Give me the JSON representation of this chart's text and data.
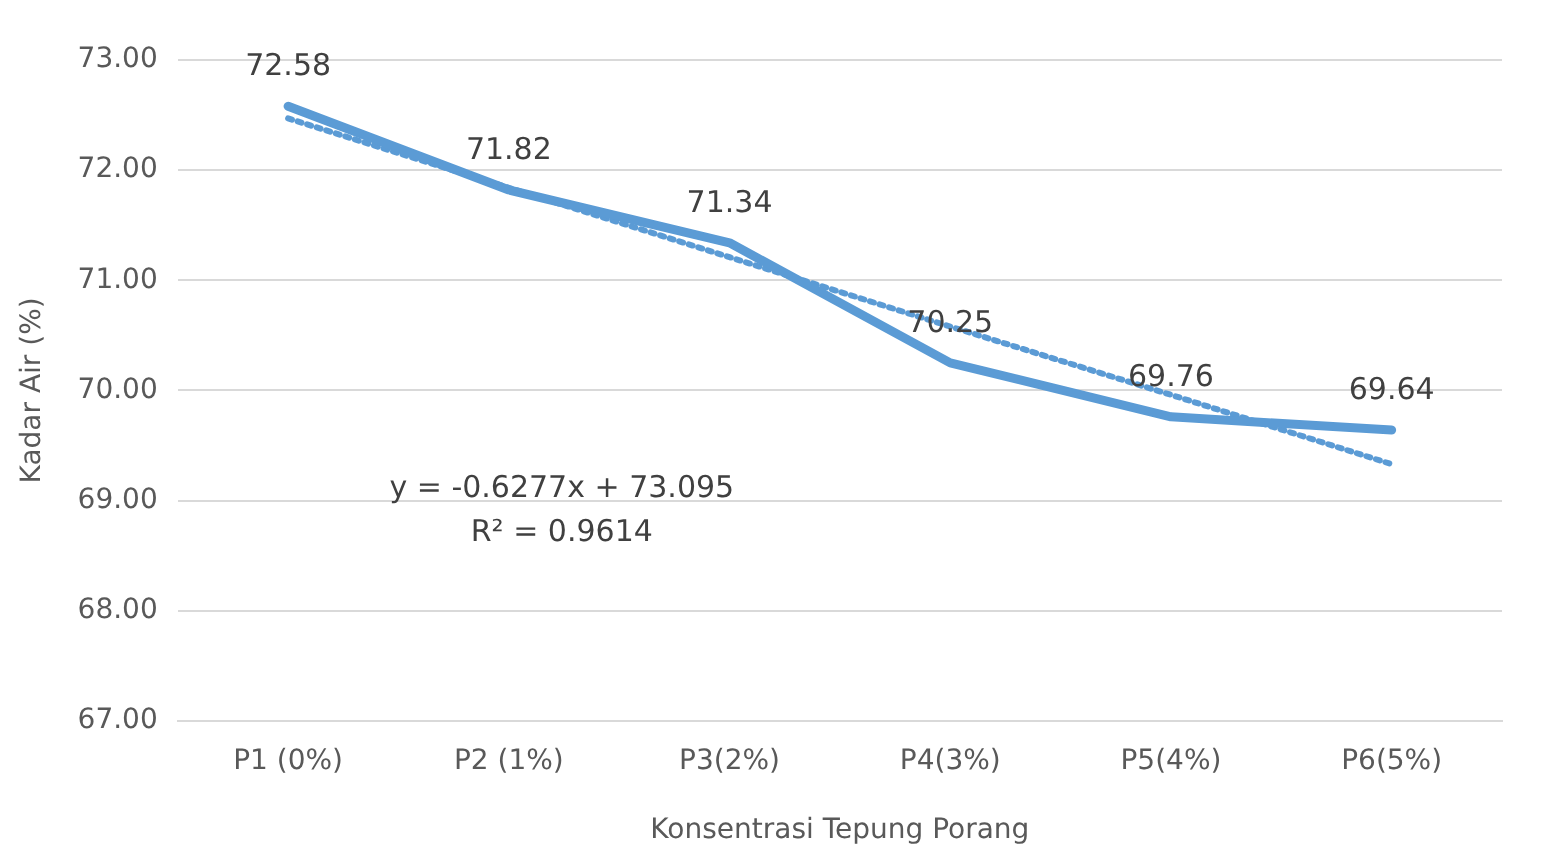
{
  "chart_data": {
    "type": "line",
    "xlabel": "Konsentrasi Tepung Porang",
    "ylabel": "Kadar Air (%)",
    "categories": [
      "P1 (0%)",
      "P2 (1%)",
      "P3(2%)",
      "P4(3%)",
      "P5(4%)",
      "P6(5%)"
    ],
    "series": [
      {
        "color": "#5b9bd5",
        "line_style": "solid",
        "values": [
          72.58,
          71.82,
          71.34,
          70.25,
          69.76,
          69.64
        ],
        "value_labels": [
          "72.58",
          "71.82",
          "71.34",
          "70.25",
          "69.76",
          "69.64"
        ]
      },
      {
        "color": "#5b9bd5",
        "line_style": "dotted",
        "values": [
          72.47,
          71.84,
          71.21,
          70.58,
          69.96,
          69.33
        ]
      }
    ],
    "ylim": [
      67,
      73
    ],
    "yticks": [
      {
        "value": 67,
        "label": "67.00"
      },
      {
        "value": 68,
        "label": "68.00"
      },
      {
        "value": 69,
        "label": "69.00"
      },
      {
        "value": 70,
        "label": "70.00"
      },
      {
        "value": 71,
        "label": "71.00"
      },
      {
        "value": 72,
        "label": "72.00"
      },
      {
        "value": 73,
        "label": "73.00"
      }
    ],
    "annotations": [
      "y = -0.6277x + 73.095",
      "R² = 0.9614"
    ],
    "grid": "y",
    "legend": false,
    "marker": "none"
  }
}
